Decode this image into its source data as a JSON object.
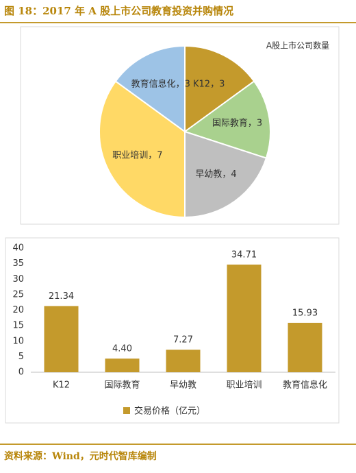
{
  "title": "图 18：2017 年 A 股上市公司教育投资并购情况",
  "source": "资料来源：Wind，元时代智库编制",
  "chart_data": [
    {
      "type": "pie",
      "title": "A股上市公司数量",
      "values": [
        3,
        3,
        4,
        7,
        3
      ],
      "value_labels": [
        "K12，3",
        "国际教育，3",
        "早幼教，4",
        "职业培训，7",
        "教育信息化，3"
      ],
      "colors": [
        "#c49a2c",
        "#a9d18e",
        "#bfbfbf",
        "#ffd966",
        "#9dc3e6"
      ]
    },
    {
      "type": "bar",
      "categories": [
        "K12",
        "国际教育",
        "早幼教",
        "职业培训",
        "教育信息化"
      ],
      "series": [
        {
          "name": "交易价格（亿元）",
          "color": "#c49a2c",
          "values": [
            21.34,
            4.4,
            7.27,
            34.71,
            15.93
          ],
          "value_labels": [
            "21.34",
            "4.40",
            "7.27",
            "34.71",
            "15.93"
          ]
        }
      ],
      "ylim": [
        0,
        40
      ],
      "yticks": [
        0,
        5,
        10,
        15,
        20,
        25,
        30,
        35,
        40
      ],
      "grid": false
    }
  ]
}
